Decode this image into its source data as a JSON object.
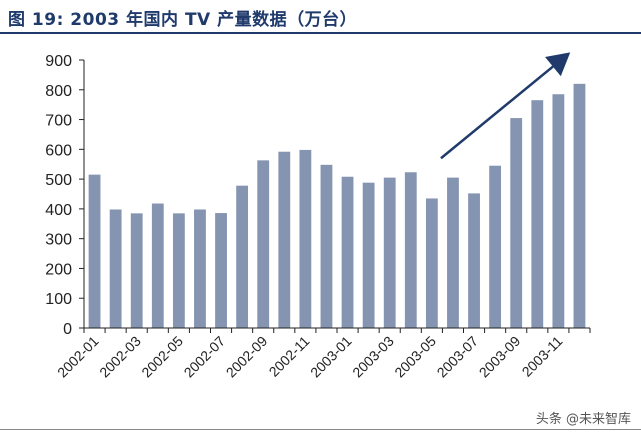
{
  "figure": {
    "label": "图 19:",
    "title": "2003 年国内 TV 产量数据（万台）"
  },
  "watermark": "头条 @未来智库",
  "colors": {
    "bar": "#8594b0",
    "arrow": "#1f3a6b",
    "title": "#1f3a6b"
  },
  "chart_data": {
    "type": "bar",
    "title": "2003 年国内 TV 产量数据（万台）",
    "xlabel": "",
    "ylabel": "",
    "ylim": [
      0,
      900
    ],
    "yticks": [
      0,
      100,
      200,
      300,
      400,
      500,
      600,
      700,
      800,
      900
    ],
    "grid": false,
    "categories": [
      "2002-01",
      "2002-02",
      "2002-03",
      "2002-04",
      "2002-05",
      "2002-06",
      "2002-07",
      "2002-08",
      "2002-09",
      "2002-10",
      "2002-11",
      "2002-12",
      "2003-01",
      "2003-02",
      "2003-03",
      "2003-04",
      "2003-05",
      "2003-06",
      "2003-07",
      "2003-08",
      "2003-09",
      "2003-10",
      "2003-11",
      "2003-12"
    ],
    "tick_labels": [
      "2002-01",
      "2002-03",
      "2002-05",
      "2002-07",
      "2002-09",
      "2002-11",
      "2003-01",
      "2003-03",
      "2003-05",
      "2003-07",
      "2003-09",
      "2003-11"
    ],
    "values": [
      515,
      398,
      385,
      418,
      385,
      398,
      386,
      478,
      563,
      592,
      598,
      548,
      508,
      488,
      505,
      523,
      435,
      505,
      452,
      545,
      705,
      765,
      785,
      820
    ],
    "annotations": [
      {
        "type": "arrow",
        "from": {
          "category": "2003-06",
          "value": 570
        },
        "to": {
          "category": "2003-11",
          "value": 915
        }
      }
    ]
  }
}
